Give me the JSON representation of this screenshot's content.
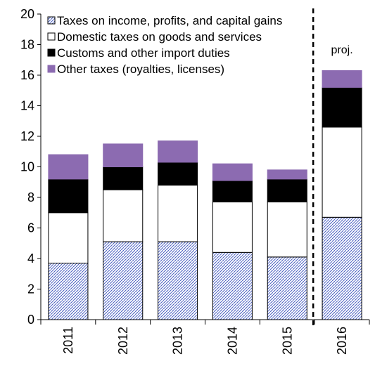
{
  "chart_data": {
    "type": "bar",
    "stacked": true,
    "categories": [
      "2011",
      "2012",
      "2013",
      "2014",
      "2015",
      "2016"
    ],
    "series": [
      {
        "name": "Taxes on income, profits, and capital gains",
        "color": "#ffffff",
        "pattern": "blue-hatch",
        "values": [
          3.7,
          5.1,
          5.1,
          4.4,
          4.1,
          6.7
        ]
      },
      {
        "name": "Domestic taxes on goods and services",
        "color": "#ffffff",
        "values": [
          3.3,
          3.4,
          3.7,
          3.3,
          3.6,
          5.9
        ]
      },
      {
        "name": "Customs and other import duties",
        "color": "#000000",
        "values": [
          2.2,
          1.5,
          1.5,
          1.4,
          1.5,
          2.6
        ]
      },
      {
        "name": "Other taxes (royalties, licenses)",
        "color": "#8c6bb1",
        "values": [
          1.6,
          1.5,
          1.4,
          1.1,
          0.6,
          1.1
        ]
      }
    ],
    "ylim": [
      0,
      20
    ],
    "yticks": [
      0,
      2,
      4,
      6,
      8,
      10,
      12,
      14,
      16,
      18,
      20
    ],
    "xlabel": "",
    "ylabel": "",
    "title": "",
    "legend": "top-left",
    "annotation": {
      "text": "proj.",
      "dashed_divider_before": "2016"
    }
  }
}
